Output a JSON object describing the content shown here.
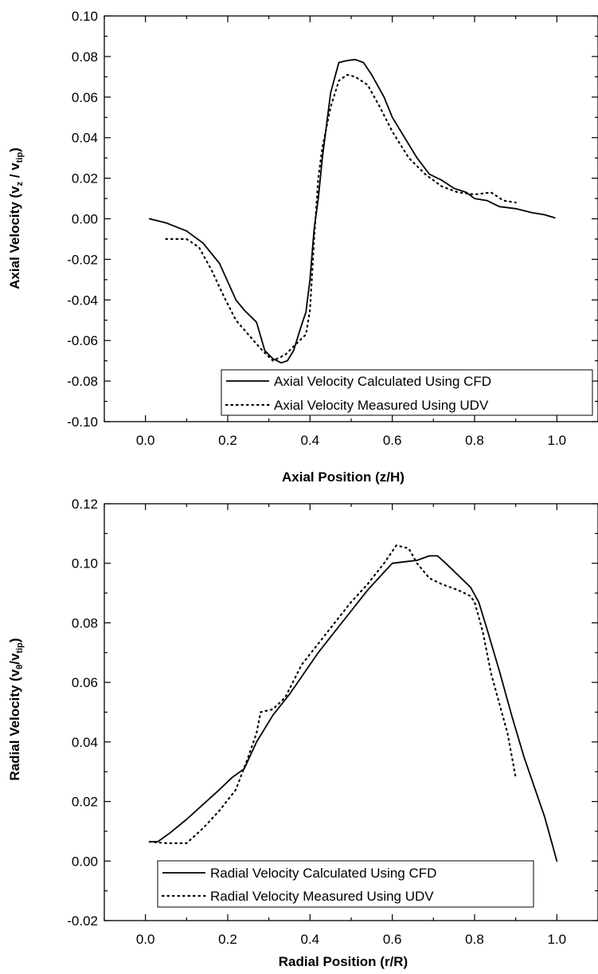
{
  "chart_data": [
    {
      "type": "line",
      "xlabel": "Axial Position (z/H)",
      "ylabel": {
        "main": "Axial Velocity (v",
        "sub1": "z",
        "mid": " / v",
        "sub2": "tip",
        "end": ")"
      },
      "xlim": [
        -0.1,
        1.1
      ],
      "ylim": [
        -0.1,
        0.1
      ],
      "xticks": [
        0.0,
        0.2,
        0.4,
        0.6,
        0.8,
        1.0
      ],
      "xtick_labels": [
        "0.0",
        "0.2",
        "0.4",
        "0.6",
        "0.8",
        "1.0"
      ],
      "yticks": [
        -0.1,
        -0.08,
        -0.06,
        -0.04,
        -0.02,
        0.0,
        0.02,
        0.04,
        0.06,
        0.08,
        0.1
      ],
      "ytick_labels": [
        "-0.10",
        "-0.08",
        "-0.06",
        "-0.04",
        "-0.02",
        "0.00",
        "0.02",
        "0.04",
        "0.06",
        "0.08",
        "0.10"
      ],
      "grid": false,
      "legend_position": "bottom-right",
      "series": [
        {
          "name": "Axial Velocity Calculated Using CFD",
          "style": "solid",
          "x": [
            0.01,
            0.05,
            0.1,
            0.14,
            0.18,
            0.22,
            0.24,
            0.27,
            0.29,
            0.31,
            0.33,
            0.345,
            0.36,
            0.38,
            0.39,
            0.4,
            0.41,
            0.42,
            0.43,
            0.45,
            0.47,
            0.49,
            0.51,
            0.53,
            0.55,
            0.58,
            0.6,
            0.63,
            0.66,
            0.69,
            0.72,
            0.75,
            0.78,
            0.8,
            0.83,
            0.86,
            0.9,
            0.94,
            0.97,
            0.995
          ],
          "y": [
            0.0,
            -0.002,
            -0.006,
            -0.012,
            -0.022,
            -0.04,
            -0.045,
            -0.051,
            -0.065,
            -0.069,
            -0.071,
            -0.07,
            -0.065,
            -0.052,
            -0.046,
            -0.03,
            -0.005,
            0.01,
            0.03,
            0.062,
            0.077,
            0.078,
            0.0785,
            0.077,
            0.071,
            0.06,
            0.05,
            0.04,
            0.03,
            0.022,
            0.019,
            0.015,
            0.013,
            0.01,
            0.009,
            0.006,
            0.005,
            0.003,
            0.002,
            0.0005
          ]
        },
        {
          "name": "Axial Velocity Measured Using UDV",
          "style": "dotted",
          "x": [
            0.05,
            0.1,
            0.13,
            0.16,
            0.19,
            0.22,
            0.25,
            0.28,
            0.31,
            0.34,
            0.37,
            0.39,
            0.4,
            0.41,
            0.42,
            0.43,
            0.45,
            0.47,
            0.49,
            0.51,
            0.54,
            0.57,
            0.6,
            0.64,
            0.68,
            0.72,
            0.76,
            0.8,
            0.84,
            0.87,
            0.9
          ],
          "y": [
            -0.01,
            -0.01,
            -0.014,
            -0.025,
            -0.038,
            -0.05,
            -0.057,
            -0.064,
            -0.07,
            -0.067,
            -0.061,
            -0.057,
            -0.045,
            -0.01,
            0.02,
            0.035,
            0.055,
            0.068,
            0.071,
            0.07,
            0.066,
            0.055,
            0.043,
            0.03,
            0.022,
            0.016,
            0.013,
            0.012,
            0.013,
            0.009,
            0.008
          ]
        }
      ]
    },
    {
      "type": "line",
      "xlabel": "Radial Position (r/R)",
      "ylabel": {
        "main": "Radial Velocity (v",
        "sub1": "θ",
        "mid": "/v",
        "sub2": "tip",
        "end": ")"
      },
      "xlim": [
        -0.1,
        1.1
      ],
      "ylim": [
        -0.02,
        0.12
      ],
      "xticks": [
        0.0,
        0.2,
        0.4,
        0.6,
        0.8,
        1.0
      ],
      "xtick_labels": [
        "0.0",
        "0.2",
        "0.4",
        "0.6",
        "0.8",
        "1.0"
      ],
      "yticks": [
        -0.02,
        0.0,
        0.02,
        0.04,
        0.06,
        0.08,
        0.1,
        0.12
      ],
      "ytick_labels": [
        "-0.02",
        "0.00",
        "0.02",
        "0.04",
        "0.06",
        "0.08",
        "0.10",
        "0.12"
      ],
      "grid": false,
      "legend_position": "bottom-center",
      "series": [
        {
          "name": "Radial Velocity Calculated Using CFD",
          "style": "solid",
          "x": [
            0.01,
            0.03,
            0.06,
            0.1,
            0.14,
            0.18,
            0.21,
            0.24,
            0.27,
            0.31,
            0.35,
            0.38,
            0.42,
            0.46,
            0.5,
            0.54,
            0.58,
            0.6,
            0.63,
            0.66,
            0.69,
            0.71,
            0.73,
            0.76,
            0.79,
            0.81,
            0.83,
            0.86,
            0.89,
            0.92,
            0.95,
            0.97,
            0.99,
            1.0
          ],
          "y": [
            0.0065,
            0.0065,
            0.0095,
            0.014,
            0.019,
            0.024,
            0.028,
            0.031,
            0.04,
            0.049,
            0.056,
            0.062,
            0.07,
            0.077,
            0.084,
            0.091,
            0.097,
            0.1,
            0.1005,
            0.101,
            0.1025,
            0.1025,
            0.1,
            0.096,
            0.092,
            0.087,
            0.078,
            0.064,
            0.049,
            0.035,
            0.023,
            0.015,
            0.005,
            0.0
          ]
        },
        {
          "name": "Radial Velocity Measured Using UDV",
          "style": "dotted",
          "x": [
            0.01,
            0.05,
            0.1,
            0.14,
            0.18,
            0.22,
            0.25,
            0.27,
            0.28,
            0.31,
            0.34,
            0.38,
            0.42,
            0.46,
            0.5,
            0.54,
            0.58,
            0.61,
            0.64,
            0.66,
            0.69,
            0.72,
            0.76,
            0.79,
            0.8,
            0.82,
            0.84,
            0.86,
            0.88,
            0.9
          ],
          "y": [
            0.0065,
            0.006,
            0.006,
            0.011,
            0.017,
            0.024,
            0.035,
            0.043,
            0.05,
            0.051,
            0.055,
            0.066,
            0.073,
            0.08,
            0.087,
            0.093,
            0.1,
            0.106,
            0.105,
            0.1,
            0.095,
            0.093,
            0.091,
            0.089,
            0.087,
            0.077,
            0.063,
            0.053,
            0.043,
            0.028
          ]
        }
      ]
    }
  ]
}
